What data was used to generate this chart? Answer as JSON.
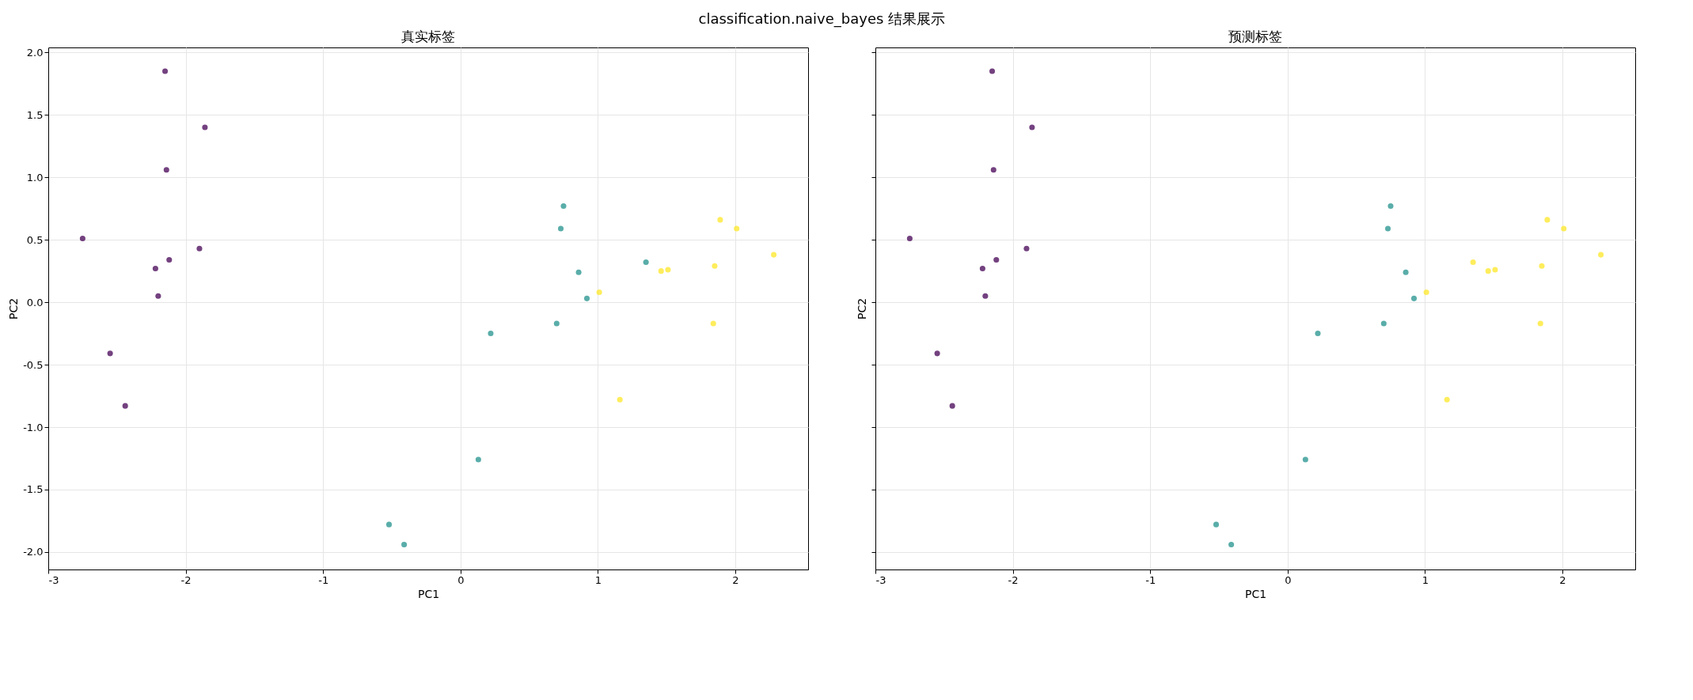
{
  "chart_data": [
    {
      "type": "scatter",
      "title": "真实标签",
      "xlabel": "PC1",
      "ylabel": "PC2",
      "annotations": [
        "classification.naive_bayes 结果展示"
      ],
      "xlim": [
        -3.0,
        2.53
      ],
      "ylim": [
        -2.14,
        2.04
      ],
      "xticks": [
        -3,
        -2,
        -1,
        0,
        1,
        2
      ],
      "yticks": [
        {
          "value": -2,
          "label": "-2.0"
        },
        {
          "value": -1.5,
          "label": "-1.5"
        },
        {
          "value": -1,
          "label": "-1.0"
        },
        {
          "value": -0.5,
          "label": "-0.5"
        },
        {
          "value": 0,
          "label": "0.0"
        },
        {
          "value": 0.5,
          "label": "0.5"
        },
        {
          "value": 1,
          "label": "1.0"
        },
        {
          "value": 1.5,
          "label": "1.5"
        },
        {
          "value": 2,
          "label": "2.0"
        }
      ],
      "grid": true,
      "marker": "circle",
      "series": [
        {
          "color": "#440154",
          "x": [
            -2.15,
            -1.86,
            -2.14,
            -2.75,
            -1.9,
            -2.12,
            -2.22,
            -2.2,
            -2.55,
            -2.44
          ],
          "values": [
            1.85,
            1.4,
            1.06,
            0.51,
            0.43,
            0.34,
            0.27,
            0.05,
            -0.41,
            -0.83
          ]
        },
        {
          "color": "#21918c",
          "x": [
            0.75,
            0.73,
            0.86,
            1.35,
            0.92,
            0.7,
            0.22,
            0.13,
            -0.52,
            -0.41
          ],
          "values": [
            0.77,
            0.59,
            0.24,
            0.32,
            0.03,
            -0.17,
            -0.25,
            -1.26,
            -1.78,
            -1.94
          ]
        },
        {
          "color": "#fde725",
          "x": [
            1.89,
            2.01,
            2.28,
            1.85,
            1.46,
            1.51,
            1.01,
            1.84,
            1.16
          ],
          "values": [
            0.66,
            0.59,
            0.38,
            0.29,
            0.25,
            0.26,
            0.08,
            -0.17,
            -0.78
          ]
        }
      ]
    },
    {
      "type": "scatter",
      "title": "预测标签",
      "xlabel": "PC1",
      "ylabel": "PC2",
      "xlim": [
        -3.0,
        2.53
      ],
      "ylim": [
        -2.14,
        2.04
      ],
      "xticks": [
        -3,
        -2,
        -1,
        0,
        1,
        2
      ],
      "yticks": [
        {
          "value": -2,
          "label": null
        },
        {
          "value": -1.5,
          "label": null
        },
        {
          "value": -1,
          "label": null
        },
        {
          "value": -0.5,
          "label": null
        },
        {
          "value": 0,
          "label": null
        },
        {
          "value": 0.5,
          "label": null
        },
        {
          "value": 1,
          "label": null
        },
        {
          "value": 1.5,
          "label": null
        },
        {
          "value": 2,
          "label": null
        }
      ],
      "tick_labels": "x",
      "grid": true,
      "marker": "circle",
      "series": [
        {
          "color": "#440154",
          "x": [
            -2.15,
            -1.86,
            -2.14,
            -2.75,
            -1.9,
            -2.12,
            -2.22,
            -2.2,
            -2.55,
            -2.44
          ],
          "values": [
            1.85,
            1.4,
            1.06,
            0.51,
            0.43,
            0.34,
            0.27,
            0.05,
            -0.41,
            -0.83
          ]
        },
        {
          "color": "#21918c",
          "x": [
            0.75,
            0.73,
            0.86,
            0.92,
            0.7,
            0.22,
            0.13,
            -0.52,
            -0.41
          ],
          "values": [
            0.77,
            0.59,
            0.24,
            0.03,
            -0.17,
            -0.25,
            -1.26,
            -1.78,
            -1.94
          ]
        },
        {
          "color": "#fde725",
          "x": [
            1.89,
            2.01,
            2.28,
            1.85,
            1.46,
            1.51,
            1.35,
            1.01,
            1.84,
            1.16
          ],
          "values": [
            0.66,
            0.59,
            0.38,
            0.29,
            0.25,
            0.26,
            0.32,
            0.08,
            -0.17,
            -0.78
          ]
        }
      ]
    }
  ]
}
